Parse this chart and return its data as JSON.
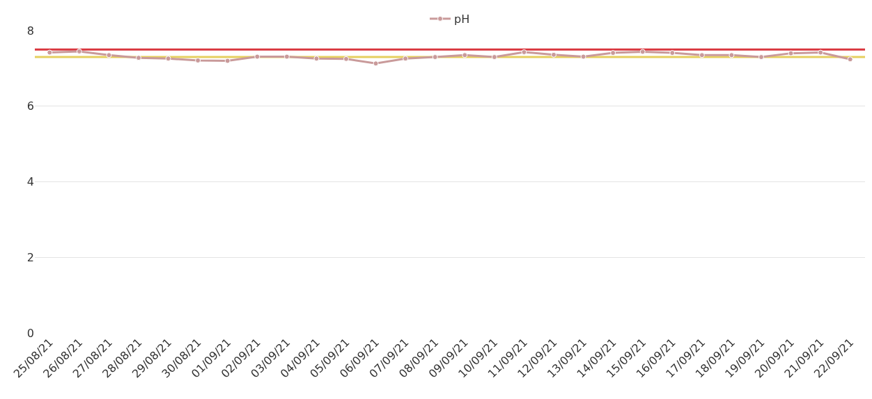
{
  "chart_data": {
    "type": "line",
    "categories": [
      "25/08/21",
      "26/08/21",
      "27/08/21",
      "28/08/21",
      "29/08/21",
      "30/08/21",
      "01/09/21",
      "02/09/21",
      "03/09/21",
      "04/09/21",
      "05/09/21",
      "06/09/21",
      "07/09/21",
      "08/09/21",
      "09/09/21",
      "10/09/21",
      "11/09/21",
      "12/09/21",
      "13/09/21",
      "14/09/21",
      "15/09/21",
      "16/09/21",
      "17/09/21",
      "18/09/21",
      "19/09/21",
      "20/09/21",
      "21/09/21",
      "22/09/21"
    ],
    "series": [
      {
        "name": "pH",
        "color": "#c99a9a",
        "values": [
          7.42,
          7.45,
          7.35,
          7.28,
          7.26,
          7.21,
          7.2,
          7.31,
          7.31,
          7.26,
          7.25,
          7.13,
          7.26,
          7.3,
          7.35,
          7.3,
          7.43,
          7.36,
          7.31,
          7.41,
          7.44,
          7.41,
          7.35,
          7.35,
          7.3,
          7.4,
          7.42,
          7.24
        ]
      }
    ],
    "ylim": [
      0,
      8
    ],
    "yticks": [
      0,
      2,
      4,
      6,
      8
    ],
    "grid": "y",
    "legend": "top",
    "marker": "circle",
    "line_style": "solid",
    "ref_lines": [
      {
        "axis": "y",
        "value": 7.5,
        "color": "#d9363e"
      },
      {
        "axis": "y",
        "value": 7.3,
        "color": "#e6cf5e"
      }
    ]
  }
}
